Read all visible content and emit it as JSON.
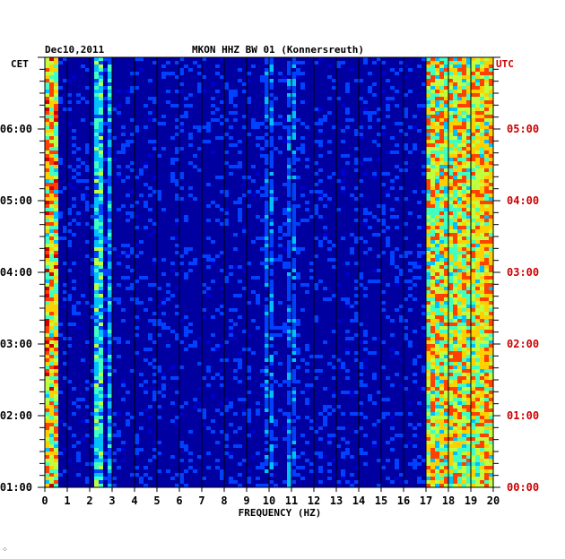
{
  "chart_data": {
    "type": "heatmap",
    "title": "MKON HHZ BW 01 (Konnersreuth)",
    "date": "Dec10,2011",
    "xlabel": "FREQUENCY (HZ)",
    "xlim": [
      0,
      20
    ],
    "x_ticks": [
      "0",
      "1",
      "2",
      "3",
      "4",
      "5",
      "6",
      "7",
      "8",
      "9",
      "10",
      "11",
      "12",
      "13",
      "14",
      "15",
      "16",
      "17",
      "18",
      "19",
      "20"
    ],
    "left_axis_title": "CET",
    "right_axis_title": "UTC",
    "ylim_hours_cet": [
      1,
      7
    ],
    "cet_ticks": [
      "01:00",
      "02:00",
      "03:00",
      "04:00",
      "05:00",
      "06:00"
    ],
    "utc_ticks": [
      "00:00",
      "01:00",
      "02:00",
      "03:00",
      "04:00",
      "05:00"
    ],
    "grid": true,
    "colors": {
      "background": "#0000a0",
      "grid": "#000000",
      "utc_label": "#cc0000",
      "cet_label": "#000000"
    },
    "colormap": [
      "#000090",
      "#0000d0",
      "#0040ff",
      "#00c0ff",
      "#40ffc0",
      "#c0ff40",
      "#ffd000",
      "#ff4000",
      "#d00000"
    ],
    "spectral_features": [
      {
        "name": "low-frequency band",
        "x_range": [
          0,
          0.6
        ],
        "level": 0.85
      },
      {
        "name": "line near 2.5 Hz",
        "x_range": [
          2.3,
          2.6
        ],
        "level": 0.55
      },
      {
        "name": "line near 3 Hz",
        "x_range": [
          2.9,
          3.05
        ],
        "level": 0.45
      },
      {
        "name": "line near 10 Hz",
        "x_range": [
          9.9,
          10.15
        ],
        "level": 0.35
      },
      {
        "name": "line near 11 Hz",
        "x_range": [
          10.9,
          11.15
        ],
        "level": 0.35
      },
      {
        "name": "high-frequency noise",
        "x_range": [
          17,
          20
        ],
        "level": 0.8
      }
    ]
  },
  "footer": {
    "corner_mark": "⁘"
  }
}
